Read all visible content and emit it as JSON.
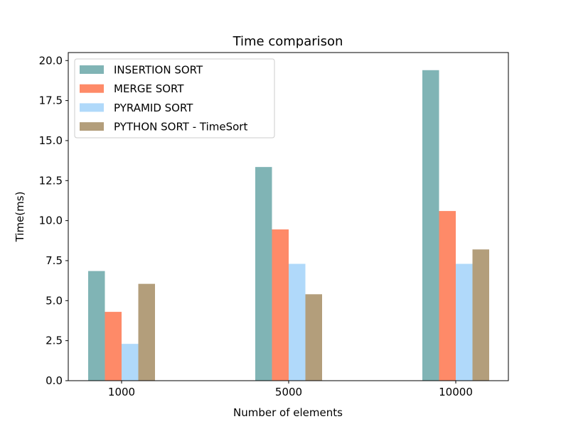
{
  "chart_data": {
    "type": "bar",
    "title": "Time comparison",
    "xlabel": "Number of elements",
    "ylabel": "Time(ms)",
    "categories": [
      "1000",
      "5000",
      "10000"
    ],
    "ylim": [
      0,
      20.5
    ],
    "yticks": [
      "0.0",
      "2.5",
      "5.0",
      "7.5",
      "10.0",
      "12.5",
      "15.0",
      "17.5",
      "20.0"
    ],
    "grid": false,
    "legend_position": "top-left",
    "series": [
      {
        "name": "INSERTION SORT",
        "color": "#80b4b5",
        "values": [
          6.85,
          13.35,
          19.4
        ]
      },
      {
        "name": "MERGE SORT",
        "color": "#fe8a68",
        "values": [
          4.3,
          9.45,
          10.6
        ]
      },
      {
        "name": "PYRAMID SORT",
        "color": "#b0d9fa",
        "values": [
          2.3,
          7.3,
          7.3
        ]
      },
      {
        "name": "PYTHON SORT - TimeSort",
        "color": "#b39e7b",
        "values": [
          6.05,
          5.4,
          8.2
        ]
      }
    ]
  }
}
